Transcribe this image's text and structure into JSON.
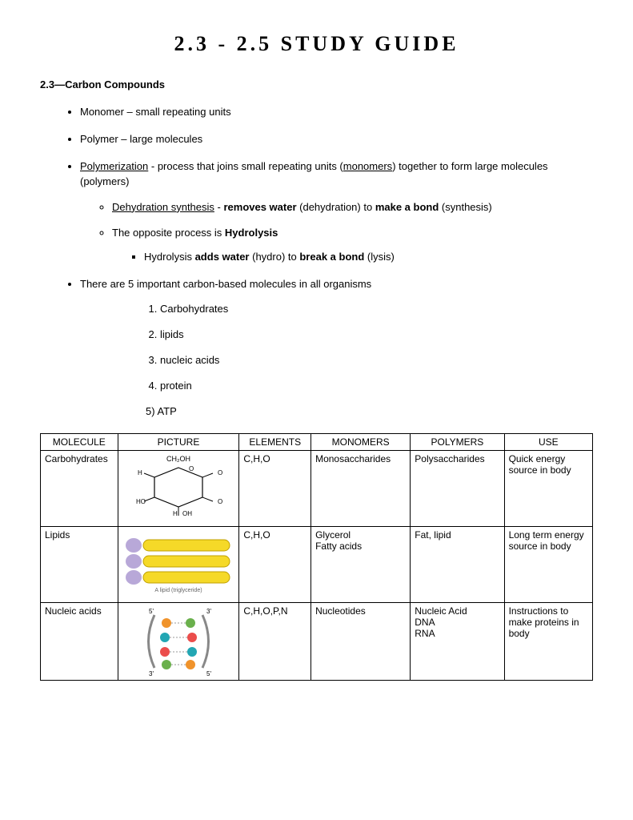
{
  "title": "2.3 - 2.5 STUDY GUIDE",
  "section": "2.3—Carbon Compounds",
  "b1": "Monomer – small repeating units",
  "b2": "Polymer – large molecules",
  "b3a": "Polymerization",
  "b3b": " - process that joins small repeating units (",
  "b3c": "monomers",
  "b3d": ") together to form large molecules (polymers)",
  "s1a": "Dehydration synthesis",
  "s1b": " - ",
  "s1c": "removes water",
  "s1d": " (dehydration) to ",
  "s1e": "make a bond",
  "s1f": " (synthesis)",
  "s2a": "The opposite process is ",
  "s2b": "Hydrolysis",
  "sq1a": "Hydrolysis ",
  "sq1b": "adds water",
  "sq1c": " (hydro) to ",
  "sq1d": "break a bond",
  "sq1e": " (lysis)",
  "b4": "There are 5 important carbon-based molecules in all organisms",
  "n1": "Carbohydrates",
  "n2": "lipids",
  "n3": "nucleic acids",
  "n4": "protein",
  "n5": "5) ATP",
  "table": {
    "headers": {
      "c1": "MOLECULE",
      "c2": "PICTURE",
      "c3": "ELEMENTS",
      "c4": "MONOMERS",
      "c5": "POLYMERS",
      "c6": "USE"
    },
    "rows": [
      {
        "molecule": "Carbohydrates",
        "elements": "C,H,O",
        "monomers": "Monosaccharides",
        "polymers": "Polysaccharides",
        "use": "Quick energy source in body",
        "pic": "glucose"
      },
      {
        "molecule": "Lipids",
        "elements": "C,H,O",
        "monomers": "Glycerol\nFatty acids",
        "polymers": "Fat, lipid",
        "use": "Long term energy source in body",
        "pic": "lipid"
      },
      {
        "molecule": "Nucleic acids",
        "elements": "C,H,O,P,N",
        "monomers": "Nucleotides",
        "polymers": "Nucleic Acid\n    DNA\n    RNA",
        "use": "Instructions to make proteins in body",
        "pic": "dna"
      }
    ]
  },
  "colors": {
    "lipid_yellow": "#f5d928",
    "lipid_purple": "#b8a8d8",
    "dna_strand": "#888888",
    "dna_a": "#6ab04c",
    "dna_t": "#f0932b",
    "dna_g": "#22a6b3",
    "dna_c": "#eb4d4b"
  }
}
